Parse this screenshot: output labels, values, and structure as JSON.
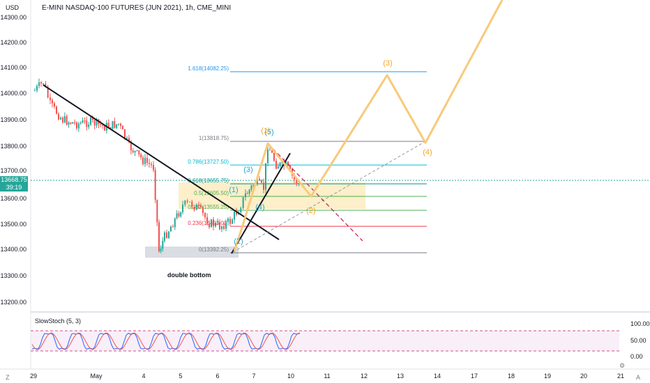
{
  "header": {
    "currency": "USD",
    "title": "E-MINI NASDAQ-100 FUTURES (JUN 2021), 1h, CME_MINI"
  },
  "price_axis": {
    "labels": [
      "14300.00",
      "14200.00",
      "14100.00",
      "14000.00",
      "13900.00",
      "13800.00",
      "13700.00",
      "13600.00",
      "13500.00",
      "13400.00",
      "13300.00",
      "13200.00"
    ]
  },
  "last_price": {
    "value": "13668.75",
    "countdown": "39:19"
  },
  "time_axis": {
    "labels": [
      "29",
      "May",
      "4",
      "5",
      "6",
      "7",
      "10",
      "11",
      "12",
      "13",
      "14",
      "17",
      "18",
      "19",
      "20",
      "21"
    ]
  },
  "fib_levels": [
    {
      "label": "1.618(14082.25)",
      "color": "#2196f3"
    },
    {
      "label": "1(13818.75)",
      "color": "#787b86"
    },
    {
      "label": "0.786(13727.50)",
      "color": "#00bcd4"
    },
    {
      "label": "0.618(13655.75)",
      "color": "#009688"
    },
    {
      "label": "0.5(13605.50)",
      "color": "#4caf50"
    },
    {
      "label": "0.382(13555.25)",
      "color": "#4caf50"
    },
    {
      "label": "0.236(13493.00)",
      "color": "#f23645"
    },
    {
      "label": "0(13392.25)",
      "color": "#787b86"
    }
  ],
  "wave_labels": {
    "blue": [
      "(1)",
      "(2)",
      "(3)",
      "(4)",
      "(5)"
    ],
    "orange": [
      "(1)",
      "(2)",
      "(3)",
      "(4)"
    ]
  },
  "annotations": {
    "double_bottom": "double bottom"
  },
  "oscillator": {
    "name": "SlowStoch (5, 3)",
    "labels": [
      "100.00",
      "50.00",
      "0.00"
    ]
  },
  "colors": {
    "up": "#26a69a",
    "down": "#ef5350",
    "projection": "#f9c97a",
    "wave_orange": "#f5a623",
    "wave_blue": "#26a6d1"
  },
  "icons": {
    "corner_left": "Z",
    "corner_right": "A",
    "gear": "gear-icon"
  }
}
